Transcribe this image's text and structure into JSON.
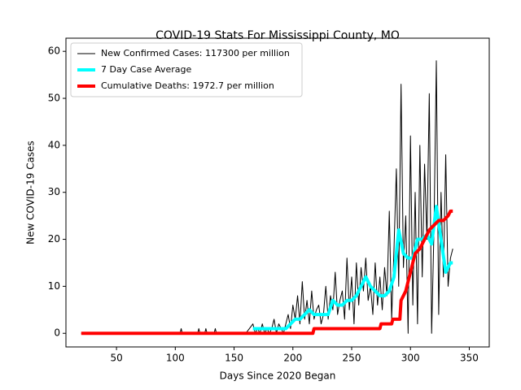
{
  "chart_data": {
    "type": "line",
    "title": "COVID-19 Stats For Mississippi County, MO",
    "x_label": "Days Since 2020 Began",
    "y_label": "New COVID-19 Cases",
    "xlim": [
      7,
      367
    ],
    "ylim": [
      -2.9,
      62.8
    ],
    "xticks": [
      50,
      100,
      150,
      200,
      250,
      300,
      350
    ],
    "yticks": [
      0,
      10,
      20,
      30,
      40,
      50,
      60
    ],
    "legend": "upper left",
    "series": [
      {
        "name": "New Confirmed Cases: 117300 per million",
        "color": "#000000",
        "width": 1,
        "x": [
          20,
          104,
          105,
          106,
          119,
          120,
          121,
          125,
          126,
          127,
          133,
          134,
          135,
          160,
          166,
          168,
          170,
          172,
          174,
          176,
          178,
          180,
          182,
          184,
          186,
          188,
          190,
          192,
          194,
          196,
          198,
          200,
          202,
          204,
          206,
          208,
          210,
          212,
          214,
          216,
          218,
          220,
          222,
          224,
          226,
          228,
          230,
          232,
          234,
          236,
          238,
          240,
          242,
          244,
          246,
          248,
          250,
          252,
          254,
          256,
          258,
          260,
          262,
          264,
          266,
          268,
          270,
          272,
          274,
          276,
          278,
          280,
          282,
          284,
          286,
          288,
          290,
          292,
          294,
          296,
          298,
          300,
          302,
          304,
          306,
          308,
          310,
          312,
          314,
          316,
          318,
          320,
          322,
          324,
          326,
          328,
          330,
          332,
          334,
          336
        ],
        "values": [
          0,
          0,
          1,
          0,
          0,
          1,
          0,
          0,
          1,
          0,
          0,
          1,
          0,
          0,
          2,
          0,
          1,
          0,
          2,
          0,
          1,
          0,
          1,
          3,
          0,
          2,
          1,
          0,
          2,
          4,
          1,
          6,
          3,
          8,
          2,
          11,
          3,
          7,
          2,
          9,
          3,
          5,
          6,
          2,
          4,
          10,
          3,
          8,
          5,
          13,
          4,
          7,
          9,
          3,
          16,
          5,
          12,
          2,
          15,
          6,
          14,
          9,
          16,
          7,
          10,
          4,
          15,
          6,
          12,
          5,
          14,
          8,
          26,
          3,
          18,
          35,
          10,
          53,
          14,
          25,
          0,
          42,
          6,
          30,
          2,
          40,
          12,
          36,
          20,
          51,
          0,
          22,
          58,
          4,
          30,
          12,
          38,
          10,
          16,
          18
        ]
      },
      {
        "name": "7 Day Case Average",
        "color": "#00ffff",
        "width": 4,
        "x": [
          166,
          170,
          174,
          178,
          182,
          186,
          190,
          194,
          198,
          202,
          206,
          210,
          214,
          218,
          222,
          226,
          230,
          234,
          238,
          242,
          246,
          250,
          254,
          258,
          262,
          266,
          270,
          274,
          278,
          282,
          286,
          290,
          294,
          298,
          302,
          306,
          310,
          314,
          318,
          322,
          326,
          330,
          334,
          336
        ],
        "values": [
          1,
          1,
          1,
          1,
          1,
          1,
          1,
          1,
          2,
          3,
          3,
          4,
          5,
          4,
          4,
          4,
          4,
          7,
          6,
          6,
          7,
          7,
          8,
          10,
          12,
          10,
          9,
          8,
          8,
          9,
          12,
          22,
          17,
          16,
          16,
          20,
          20,
          21,
          19,
          27,
          20,
          13,
          15,
          15
        ]
      },
      {
        "name": "Cumulative Deaths: 1972.7 per million",
        "color": "#ff0000",
        "width": 4,
        "x": [
          20,
          217,
          218,
          274,
          275,
          284,
          285,
          291,
          292,
          296,
          300,
          304,
          308,
          312,
          316,
          320,
          324,
          328,
          332,
          334,
          336
        ],
        "values": [
          0,
          0,
          1,
          1,
          2,
          2,
          3,
          3,
          7,
          9,
          13,
          17,
          18,
          20,
          22,
          23,
          24,
          24,
          25,
          26,
          26
        ]
      }
    ]
  }
}
